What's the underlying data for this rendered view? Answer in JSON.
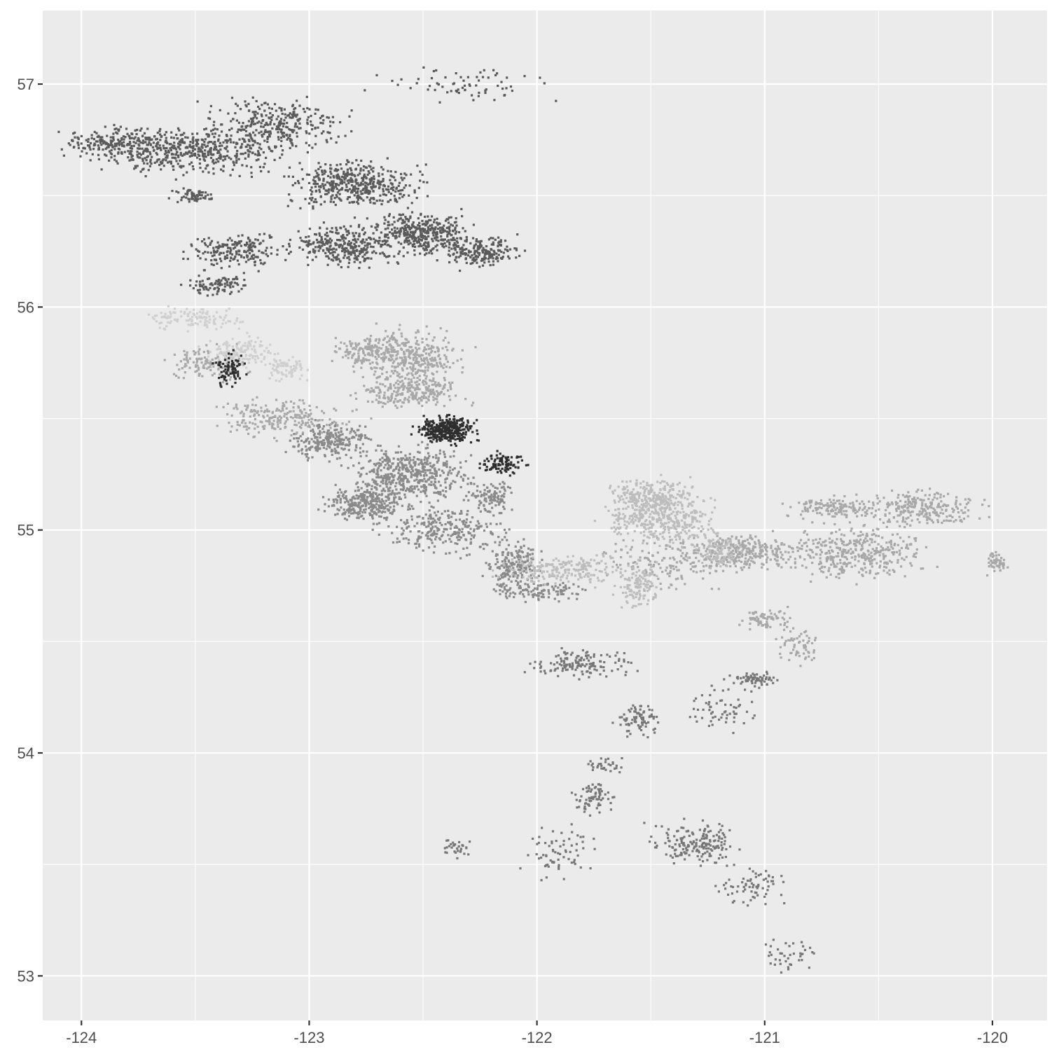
{
  "chart_data": {
    "type": "scatter",
    "title": "",
    "xlabel": "",
    "ylabel": "",
    "xlim": [
      -124.17,
      -119.76
    ],
    "ylim": [
      52.8,
      57.33
    ],
    "x_ticks": [
      -124,
      -123,
      -122,
      -121,
      -120
    ],
    "y_ticks": [
      53,
      54,
      55,
      56,
      57
    ],
    "x_tick_labels": [
      "-124",
      "-123",
      "-122",
      "-121",
      "-120"
    ],
    "y_tick_labels": [
      "53",
      "54",
      "55",
      "56",
      "57"
    ],
    "grid": true,
    "legend": "none",
    "panel_background": "#ebebeb",
    "gridline_color": "#ffffff",
    "series": [
      {
        "color": "#5a5a5a",
        "clusters": [
          {
            "x": -123.55,
            "y": 56.7,
            "rx": 0.45,
            "ry": 0.1,
            "n": 520
          },
          {
            "x": -123.85,
            "y": 56.74,
            "rx": 0.22,
            "ry": 0.06,
            "n": 140
          },
          {
            "x": -123.15,
            "y": 56.82,
            "rx": 0.3,
            "ry": 0.12,
            "n": 300
          },
          {
            "x": -122.8,
            "y": 56.55,
            "rx": 0.28,
            "ry": 0.1,
            "n": 450
          },
          {
            "x": -122.5,
            "y": 56.33,
            "rx": 0.2,
            "ry": 0.1,
            "n": 380
          },
          {
            "x": -122.85,
            "y": 56.28,
            "rx": 0.2,
            "ry": 0.1,
            "n": 320
          },
          {
            "x": -122.25,
            "y": 56.25,
            "rx": 0.17,
            "ry": 0.07,
            "n": 200
          },
          {
            "x": -123.3,
            "y": 56.25,
            "rx": 0.22,
            "ry": 0.08,
            "n": 200
          },
          {
            "x": -123.4,
            "y": 56.1,
            "rx": 0.15,
            "ry": 0.05,
            "n": 90
          },
          {
            "x": -123.5,
            "y": 56.5,
            "rx": 0.1,
            "ry": 0.03,
            "n": 60
          },
          {
            "x": -122.3,
            "y": 57.0,
            "rx": 0.4,
            "ry": 0.08,
            "n": 70
          }
        ]
      },
      {
        "color": "#8a8a8a",
        "clusters": [
          {
            "x": -122.55,
            "y": 55.25,
            "rx": 0.25,
            "ry": 0.12,
            "n": 480
          },
          {
            "x": -122.75,
            "y": 55.12,
            "rx": 0.18,
            "ry": 0.08,
            "n": 300
          },
          {
            "x": -122.9,
            "y": 55.4,
            "rx": 0.2,
            "ry": 0.08,
            "n": 250
          },
          {
            "x": -122.4,
            "y": 55.0,
            "rx": 0.25,
            "ry": 0.1,
            "n": 260
          },
          {
            "x": -122.1,
            "y": 54.85,
            "rx": 0.12,
            "ry": 0.1,
            "n": 180
          },
          {
            "x": -122.2,
            "y": 55.15,
            "rx": 0.1,
            "ry": 0.08,
            "n": 100
          },
          {
            "x": -122.0,
            "y": 54.73,
            "rx": 0.22,
            "ry": 0.05,
            "n": 120
          }
        ]
      },
      {
        "color": "#a8a8a8",
        "clusters": [
          {
            "x": -122.55,
            "y": 55.78,
            "rx": 0.22,
            "ry": 0.12,
            "n": 350
          },
          {
            "x": -122.55,
            "y": 55.62,
            "rx": 0.22,
            "ry": 0.08,
            "n": 250
          },
          {
            "x": -122.75,
            "y": 55.8,
            "rx": 0.15,
            "ry": 0.07,
            "n": 130
          },
          {
            "x": -123.1,
            "y": 55.5,
            "rx": 0.3,
            "ry": 0.08,
            "n": 220
          },
          {
            "x": -123.45,
            "y": 55.75,
            "rx": 0.2,
            "ry": 0.08,
            "n": 120
          },
          {
            "x": -121.1,
            "y": 54.9,
            "rx": 0.25,
            "ry": 0.08,
            "n": 300
          },
          {
            "x": -120.6,
            "y": 54.9,
            "rx": 0.3,
            "ry": 0.12,
            "n": 380
          },
          {
            "x": -120.3,
            "y": 55.1,
            "rx": 0.25,
            "ry": 0.08,
            "n": 250
          },
          {
            "x": -120.7,
            "y": 55.1,
            "rx": 0.2,
            "ry": 0.05,
            "n": 150
          },
          {
            "x": -119.98,
            "y": 54.85,
            "rx": 0.05,
            "ry": 0.05,
            "n": 50
          },
          {
            "x": -121.4,
            "y": 54.85,
            "rx": 0.3,
            "ry": 0.12,
            "n": 150
          },
          {
            "x": -121.0,
            "y": 54.6,
            "rx": 0.12,
            "ry": 0.05,
            "n": 70
          },
          {
            "x": -120.85,
            "y": 54.48,
            "rx": 0.1,
            "ry": 0.1,
            "n": 60
          }
        ]
      },
      {
        "color": "#bdbdbd",
        "clusters": [
          {
            "x": -121.45,
            "y": 55.05,
            "rx": 0.25,
            "ry": 0.12,
            "n": 380
          },
          {
            "x": -121.5,
            "y": 55.15,
            "rx": 0.18,
            "ry": 0.08,
            "n": 250
          },
          {
            "x": -121.85,
            "y": 54.82,
            "rx": 0.3,
            "ry": 0.07,
            "n": 220
          },
          {
            "x": -121.55,
            "y": 54.75,
            "rx": 0.1,
            "ry": 0.1,
            "n": 120
          },
          {
            "x": -121.2,
            "y": 54.9,
            "rx": 0.12,
            "ry": 0.07,
            "n": 90
          }
        ]
      },
      {
        "color": "#cfcfcf",
        "clusters": [
          {
            "x": -123.5,
            "y": 55.95,
            "rx": 0.2,
            "ry": 0.05,
            "n": 120
          },
          {
            "x": -123.3,
            "y": 55.8,
            "rx": 0.15,
            "ry": 0.07,
            "n": 140
          },
          {
            "x": -123.1,
            "y": 55.72,
            "rx": 0.1,
            "ry": 0.05,
            "n": 80
          }
        ]
      },
      {
        "color": "#2e2e2e",
        "clusters": [
          {
            "x": -122.4,
            "y": 55.45,
            "rx": 0.13,
            "ry": 0.06,
            "n": 320
          },
          {
            "x": -122.15,
            "y": 55.3,
            "rx": 0.1,
            "ry": 0.05,
            "n": 100
          },
          {
            "x": -123.35,
            "y": 55.72,
            "rx": 0.07,
            "ry": 0.08,
            "n": 80
          }
        ]
      },
      {
        "color": "#777777",
        "clusters": [
          {
            "x": -121.8,
            "y": 54.4,
            "rx": 0.25,
            "ry": 0.06,
            "n": 140
          },
          {
            "x": -121.55,
            "y": 54.15,
            "rx": 0.1,
            "ry": 0.07,
            "n": 80
          },
          {
            "x": -121.2,
            "y": 54.2,
            "rx": 0.15,
            "ry": 0.1,
            "n": 60
          },
          {
            "x": -121.05,
            "y": 54.33,
            "rx": 0.1,
            "ry": 0.03,
            "n": 70
          },
          {
            "x": -121.75,
            "y": 53.8,
            "rx": 0.08,
            "ry": 0.08,
            "n": 70
          },
          {
            "x": -122.35,
            "y": 53.57,
            "rx": 0.07,
            "ry": 0.04,
            "n": 30
          },
          {
            "x": -121.9,
            "y": 53.55,
            "rx": 0.15,
            "ry": 0.12,
            "n": 70
          },
          {
            "x": -121.3,
            "y": 53.6,
            "rx": 0.2,
            "ry": 0.1,
            "n": 180
          },
          {
            "x": -121.05,
            "y": 53.4,
            "rx": 0.15,
            "ry": 0.1,
            "n": 70
          },
          {
            "x": -120.9,
            "y": 53.1,
            "rx": 0.12,
            "ry": 0.08,
            "n": 40
          },
          {
            "x": -121.7,
            "y": 53.95,
            "rx": 0.1,
            "ry": 0.05,
            "n": 30
          }
        ]
      }
    ]
  }
}
